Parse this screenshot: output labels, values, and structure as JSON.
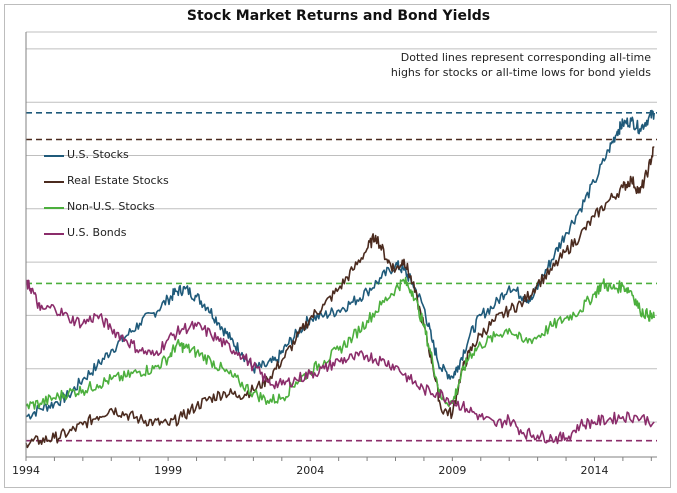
{
  "chart_data": {
    "type": "line",
    "title": "Stock Market Returns and Bond Yields",
    "annotation": "Dotted lines represent corresponding all-time highs for stocks or all-time lows for bond yields",
    "annotation_lines": [
      "Dotted lines represent corresponding all-time",
      "highs for stocks or all-time lows for bond yields"
    ],
    "x_ticks": [
      "1994",
      "1999",
      "2004",
      "2009",
      "2014"
    ],
    "xlim": [
      1994,
      2016.2
    ],
    "ylim": [
      0,
      8
    ],
    "grid": "horizontal",
    "legend_position": "left",
    "colors": {
      "U.S. Stocks": "#1f5a7a",
      "Real Estate Stocks": "#4b2b1f",
      "Non-U.S. Stocks": "#4caf3d",
      "U.S. Bonds": "#8b2d6b"
    },
    "series": [
      {
        "name": "U.S. Stocks",
        "x": [
          1994,
          1994.5,
          1995,
          1995.5,
          1996,
          1996.5,
          1997,
          1997.5,
          1998,
          1998.5,
          1999,
          1999.3,
          1999.6,
          2000,
          2000.4,
          2000.8,
          2001.2,
          2001.6,
          2002,
          2002.4,
          2002.8,
          2003.2,
          2003.6,
          2004,
          2004.5,
          2005,
          2005.5,
          2006,
          2006.5,
          2007,
          2007.3,
          2007.6,
          2008,
          2008.3,
          2008.6,
          2009,
          2009.2,
          2009.6,
          2010,
          2010.5,
          2011,
          2011.5,
          2011.8,
          2012.2,
          2012.6,
          2013,
          2013.5,
          2014,
          2014.5,
          2014.8,
          2015,
          2015.3,
          2015.6,
          2015.9,
          2016.1
        ],
        "values": [
          0.1,
          0.25,
          0.35,
          0.5,
          0.8,
          1.05,
          1.35,
          1.6,
          1.85,
          2.05,
          2.3,
          2.45,
          2.5,
          2.35,
          2.15,
          1.85,
          1.55,
          1.3,
          1.0,
          1.05,
          1.15,
          1.45,
          1.7,
          1.95,
          2.0,
          2.1,
          2.25,
          2.45,
          2.7,
          2.95,
          2.85,
          2.6,
          2.15,
          1.5,
          1.0,
          0.85,
          1.05,
          1.6,
          2.0,
          2.2,
          2.55,
          2.35,
          2.3,
          2.75,
          3.15,
          3.55,
          4.0,
          4.5,
          5.1,
          5.45,
          5.6,
          5.65,
          5.5,
          5.7,
          5.8
        ]
      },
      {
        "name": "Real Estate Stocks",
        "x": [
          1994,
          1994.5,
          1995,
          1995.5,
          1996,
          1996.5,
          1997,
          1997.5,
          1998,
          1998.5,
          1999,
          1999.5,
          2000,
          2000.5,
          2001,
          2001.5,
          2002,
          2002.5,
          2003,
          2003.5,
          2004,
          2004.5,
          2005,
          2005.5,
          2006,
          2006.3,
          2006.7,
          2007,
          2007.3,
          2007.6,
          2008,
          2008.3,
          2008.6,
          2009,
          2009.3,
          2009.6,
          2010,
          2010.5,
          2011,
          2011.5,
          2012,
          2012.5,
          2013,
          2013.5,
          2014,
          2014.5,
          2015,
          2015.3,
          2015.6,
          2015.9,
          2016.1
        ],
        "values": [
          -0.4,
          -0.35,
          -0.3,
          -0.2,
          -0.05,
          0.1,
          0.25,
          0.15,
          0.05,
          0.0,
          -0.05,
          0.1,
          0.3,
          0.45,
          0.55,
          0.5,
          0.6,
          0.8,
          1.15,
          1.55,
          1.95,
          2.2,
          2.5,
          2.85,
          3.25,
          3.5,
          3.05,
          2.85,
          3.05,
          2.6,
          1.8,
          1.1,
          0.25,
          0.15,
          0.9,
          1.3,
          1.65,
          1.9,
          2.1,
          2.25,
          2.6,
          2.85,
          3.2,
          3.5,
          3.85,
          4.15,
          4.4,
          4.55,
          4.3,
          4.75,
          5.15
        ]
      },
      {
        "name": "Non-U.S. Stocks",
        "x": [
          1994,
          1994.5,
          1995,
          1995.5,
          1996,
          1996.5,
          1997,
          1997.5,
          1998,
          1998.5,
          1999,
          1999.3,
          1999.6,
          2000,
          2000.5,
          2001,
          2001.5,
          2002,
          2002.5,
          2003,
          2003.5,
          2004,
          2004.5,
          2005,
          2005.5,
          2006,
          2006.5,
          2007,
          2007.3,
          2007.6,
          2008,
          2008.3,
          2008.6,
          2009,
          2009.3,
          2009.6,
          2010,
          2010.5,
          2011,
          2011.5,
          2012,
          2012.5,
          2013,
          2013.5,
          2014,
          2014.3,
          2014.6,
          2015,
          2015.3,
          2015.6,
          2015.9,
          2016.1
        ],
        "values": [
          0.3,
          0.35,
          0.45,
          0.55,
          0.6,
          0.7,
          0.8,
          0.85,
          0.95,
          1.0,
          1.2,
          1.45,
          1.4,
          1.3,
          1.15,
          0.95,
          0.75,
          0.55,
          0.4,
          0.45,
          0.75,
          0.95,
          1.15,
          1.35,
          1.6,
          1.9,
          2.2,
          2.5,
          2.65,
          2.45,
          1.8,
          1.15,
          0.45,
          0.35,
          0.85,
          1.25,
          1.45,
          1.6,
          1.75,
          1.5,
          1.6,
          1.8,
          1.95,
          2.1,
          2.4,
          2.6,
          2.5,
          2.55,
          2.45,
          2.1,
          2.0,
          1.95
        ]
      },
      {
        "name": "U.S. Bonds",
        "x": [
          1994,
          1994.2,
          1994.5,
          1995,
          1995.5,
          1996,
          1996.5,
          1997,
          1997.5,
          1998,
          1998.5,
          1999,
          1999.5,
          2000,
          2000.5,
          2001,
          2001.5,
          2002,
          2002.5,
          2003,
          2003.5,
          2004,
          2004.5,
          2005,
          2005.5,
          2006,
          2006.5,
          2007,
          2007.5,
          2008,
          2008.5,
          2009,
          2009.5,
          2010,
          2010.5,
          2011,
          2011.5,
          2012,
          2012.5,
          2013,
          2013.5,
          2014,
          2014.5,
          2015,
          2015.5,
          2016.1
        ],
        "values": [
          2.6,
          2.5,
          2.1,
          2.15,
          1.95,
          1.85,
          2.0,
          1.75,
          1.55,
          1.35,
          1.25,
          1.55,
          1.75,
          1.8,
          1.65,
          1.45,
          1.3,
          1.05,
          0.75,
          0.7,
          0.8,
          0.9,
          1.0,
          1.15,
          1.2,
          1.25,
          1.15,
          1.05,
          0.8,
          0.6,
          0.55,
          0.4,
          0.25,
          0.1,
          -0.05,
          0.05,
          -0.2,
          -0.25,
          -0.3,
          -0.3,
          -0.05,
          0.0,
          0.05,
          0.1,
          0.1,
          0.0
        ]
      }
    ],
    "reference_lines": [
      {
        "series": "U.S. Stocks",
        "value": 5.8
      },
      {
        "series": "Real Estate Stocks",
        "value": 5.3
      },
      {
        "series": "Non-U.S. Stocks",
        "value": 2.6
      },
      {
        "series": "U.S. Bonds",
        "value": -0.35
      }
    ]
  }
}
